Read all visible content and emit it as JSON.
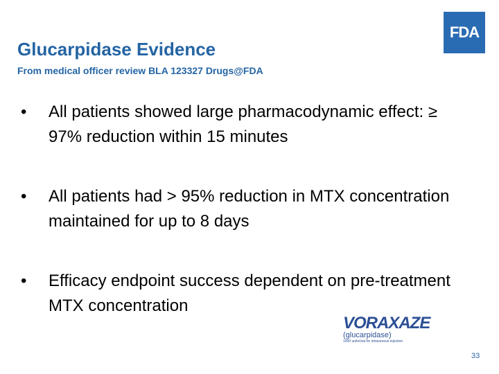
{
  "header": {
    "title": "Glucarpidase Evidence",
    "subtitle": "From medical officer review BLA 123327 Drugs@FDA",
    "logo": "FDA"
  },
  "bullets": [
    "All patients showed large pharmacodynamic effect: ≥ 97% reduction within 15 minutes",
    "All patients had > 95% reduction in MTX concentration maintained for up to 8 days",
    "Efficacy endpoint success dependent on pre-treatment MTX concentration"
  ],
  "product_logo": {
    "name": "VORAXAZE",
    "generic": "(glucarpidase)",
    "tagline": "1000 units/vial for intravenous injection"
  },
  "footer": {
    "page_number": "33"
  }
}
